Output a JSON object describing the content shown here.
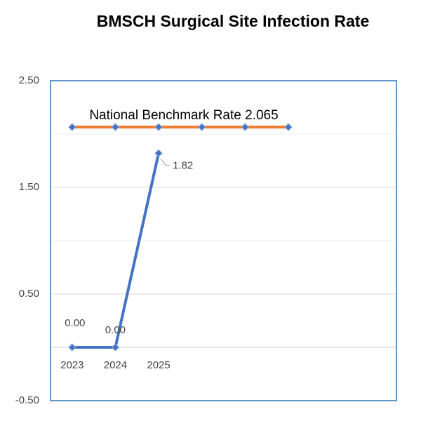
{
  "chart_data": {
    "type": "line",
    "title": "BMSCH Surgical Site Infection Rate",
    "categories": [
      "2023",
      "2024",
      "2025",
      null,
      null,
      null,
      null,
      null
    ],
    "series": [
      {
        "color": "#4472c4",
        "values": [
          0,
          0,
          1.82,
          null,
          null,
          null,
          null,
          null
        ],
        "value_labels": [
          "0.00",
          "0.00",
          "1.82",
          null,
          null,
          null,
          null,
          null
        ]
      },
      {
        "color": "#ed7d31",
        "values": [
          2.065,
          2.065,
          2.065,
          2.065,
          2.065,
          2.065,
          null,
          null
        ]
      }
    ],
    "annotation": "National Benchmark Rate 2.065",
    "ylim": [
      -0.5,
      2.5
    ],
    "yticks": [
      {
        "value": -0.5,
        "label": "-0.50"
      },
      {
        "value": 0.5,
        "label": "0.50"
      },
      {
        "value": 1.5,
        "label": "1.50"
      },
      {
        "value": 2.5,
        "label": "2.50"
      }
    ],
    "minor_yticks": [
      0,
      1,
      2
    ],
    "grid": true,
    "marker_color": "#4472c4"
  }
}
